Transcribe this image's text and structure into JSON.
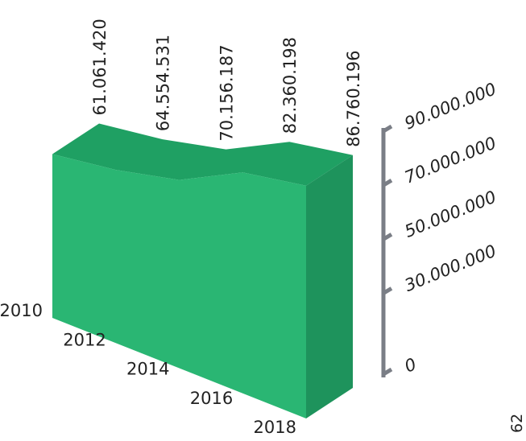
{
  "chart_data": {
    "type": "area3d",
    "categories": [
      "2010",
      "2012",
      "2014",
      "2016",
      "2018"
    ],
    "values": [
      61061420,
      64554531,
      70156187,
      82360198,
      86760196
    ],
    "value_labels": [
      "61.061.420",
      "64.554.531",
      "70.156.187",
      "82.360.198",
      "86.760.196"
    ],
    "color": "#2ab673",
    "ylim": [
      0,
      90000000
    ],
    "yticks": [
      0,
      {
        "value": 30000000,
        "label": "30.000.000"
      },
      {
        "value": 50000000,
        "label": "50.000.000"
      },
      {
        "value": 70000000,
        "label": "70.000.000"
      },
      {
        "value": 90000000,
        "label": "90.000.000"
      }
    ],
    "corner_label": "62"
  }
}
